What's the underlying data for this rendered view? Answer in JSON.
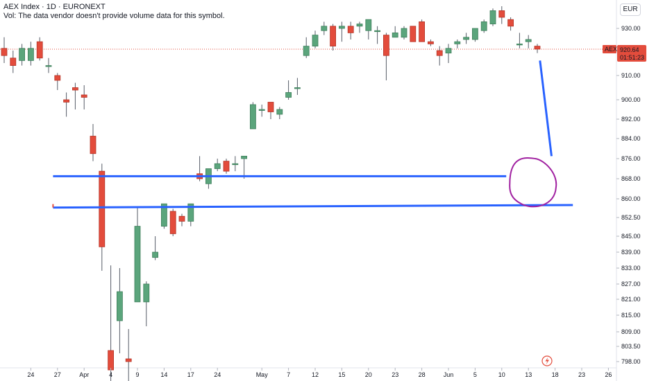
{
  "header": {
    "title": "AEX Index · 1D · EURONEXT",
    "vol_note": "Vol: The data vendor doesn't provide volume data for this symbol."
  },
  "currency_button": "EUR",
  "price_tag": {
    "symbol": "AEX",
    "price": "920.64",
    "countdown": "01:51:23"
  },
  "colors": {
    "up": "#5ba57c",
    "down": "#e34c3c",
    "blue_line": "#2962ff",
    "circle": "#a020a0",
    "price_line": "#e34c3c"
  },
  "chart_data": {
    "type": "candlestick",
    "y_axis": {
      "ticks": [
        798.0,
        803.5,
        809.0,
        815.0,
        821.0,
        827.0,
        833.0,
        839.0,
        845.0,
        852.5,
        860.0,
        868.0,
        876.0,
        884.0,
        892.0,
        900.0,
        910.0,
        920.0,
        930.0
      ],
      "labels": [
        "798.00",
        "803.50",
        "809.00",
        "815.00",
        "821.00",
        "827.00",
        "833.00",
        "839.00",
        "845.00",
        "852.50",
        "860.00",
        "868.00",
        "876.00",
        "884.00",
        "892.00",
        "900.00",
        "910.00",
        "920.00",
        "930.00"
      ]
    },
    "x_axis": {
      "labels": [
        {
          "label": "24",
          "i": 3
        },
        {
          "label": "27",
          "i": 6
        },
        {
          "label": "Apr",
          "i": 9
        },
        {
          "label": "4",
          "i": 12
        },
        {
          "label": "9",
          "i": 15
        },
        {
          "label": "14",
          "i": 18
        },
        {
          "label": "17",
          "i": 21
        },
        {
          "label": "24",
          "i": 24
        },
        {
          "label": "May",
          "i": 29
        },
        {
          "label": "7",
          "i": 32
        },
        {
          "label": "12",
          "i": 35
        },
        {
          "label": "15",
          "i": 38
        },
        {
          "label": "20",
          "i": 41
        },
        {
          "label": "23",
          "i": 44
        },
        {
          "label": "28",
          "i": 47
        },
        {
          "label": "Jun",
          "i": 50
        },
        {
          "label": "5",
          "i": 53
        },
        {
          "label": "10",
          "i": 56
        },
        {
          "label": "13",
          "i": 59
        },
        {
          "label": "18",
          "i": 62
        },
        {
          "label": "23",
          "i": 65
        },
        {
          "label": "26",
          "i": 68
        }
      ]
    },
    "candles": [
      {
        "i": 0,
        "o": 921,
        "h": 926,
        "l": 915,
        "c": 918
      },
      {
        "i": 1,
        "o": 917,
        "h": 920,
        "l": 911,
        "c": 914
      },
      {
        "i": 2,
        "o": 916,
        "h": 923,
        "l": 914,
        "c": 921
      },
      {
        "i": 3,
        "o": 916,
        "h": 924,
        "l": 914,
        "c": 921
      },
      {
        "i": 4,
        "o": 924,
        "h": 926,
        "l": 916,
        "c": 917
      },
      {
        "i": 5,
        "o": 914,
        "h": 917,
        "l": 911,
        "c": 914
      },
      {
        "i": 6,
        "o": 910,
        "h": 911,
        "l": 904,
        "c": 908
      },
      {
        "i": 7,
        "o": 900,
        "h": 903,
        "l": 893,
        "c": 899
      },
      {
        "i": 8,
        "o": 905,
        "h": 907,
        "l": 896,
        "c": 904
      },
      {
        "i": 9,
        "o": 902,
        "h": 906,
        "l": 896,
        "c": 901
      },
      {
        "i": 10,
        "o": 885,
        "h": 890,
        "l": 875,
        "c": 878
      },
      {
        "i": 11,
        "o": 871,
        "h": 874,
        "l": 832,
        "c": 841
      },
      {
        "i": 12,
        "o": 802,
        "h": 834,
        "l": 790,
        "c": 795
      },
      {
        "i": 13,
        "o": 813,
        "h": 833,
        "l": 801,
        "c": 824
      },
      {
        "i": 14,
        "o": 799,
        "h": 810,
        "l": 788,
        "c": 798
      },
      {
        "i": 15,
        "o": 820,
        "h": 857,
        "l": 820,
        "c": 849
      },
      {
        "i": 16,
        "o": 820,
        "h": 828,
        "l": 811,
        "c": 827
      },
      {
        "i": 17,
        "o": 837,
        "h": 845,
        "l": 836,
        "c": 839
      },
      {
        "i": 18,
        "o": 849,
        "h": 858,
        "l": 848,
        "c": 858
      },
      {
        "i": 19,
        "o": 855,
        "h": 856,
        "l": 845,
        "c": 846
      },
      {
        "i": 20,
        "o": 853,
        "h": 854,
        "l": 849,
        "c": 851
      },
      {
        "i": 21,
        "o": 851,
        "h": 858,
        "l": 849,
        "c": 858
      },
      {
        "i": 22,
        "o": 870,
        "h": 877,
        "l": 867,
        "c": 868
      },
      {
        "i": 23,
        "o": 866,
        "h": 871,
        "l": 864,
        "c": 872
      },
      {
        "i": 24,
        "o": 872,
        "h": 876,
        "l": 871,
        "c": 874
      },
      {
        "i": 25,
        "o": 875,
        "h": 876,
        "l": 870,
        "c": 871
      },
      {
        "i": 26,
        "o": 874,
        "h": 877,
        "l": 871,
        "c": 874
      },
      {
        "i": 27,
        "o": 876,
        "h": 877,
        "l": 868,
        "c": 877
      },
      {
        "i": 28,
        "o": 888,
        "h": 899,
        "l": 888,
        "c": 898
      },
      {
        "i": 29,
        "o": 896,
        "h": 898,
        "l": 893,
        "c": 896
      },
      {
        "i": 30,
        "o": 899,
        "h": 899,
        "l": 892,
        "c": 895
      },
      {
        "i": 31,
        "o": 894,
        "h": 897,
        "l": 892,
        "c": 896
      },
      {
        "i": 32,
        "o": 901,
        "h": 908,
        "l": 900,
        "c": 903
      },
      {
        "i": 33,
        "o": 905,
        "h": 909,
        "l": 902,
        "c": 905
      },
      {
        "i": 34,
        "o": 918,
        "h": 926,
        "l": 917,
        "c": 922
      },
      {
        "i": 35,
        "o": 922,
        "h": 929,
        "l": 921,
        "c": 927
      },
      {
        "i": 36,
        "o": 929,
        "h": 933,
        "l": 927,
        "c": 931
      },
      {
        "i": 37,
        "o": 931,
        "h": 932,
        "l": 920,
        "c": 922
      },
      {
        "i": 38,
        "o": 930,
        "h": 933,
        "l": 924,
        "c": 931
      },
      {
        "i": 39,
        "o": 931,
        "h": 933,
        "l": 925,
        "c": 928
      },
      {
        "i": 40,
        "o": 931,
        "h": 933,
        "l": 928,
        "c": 932
      },
      {
        "i": 41,
        "o": 929,
        "h": 934,
        "l": 925,
        "c": 934
      },
      {
        "i": 42,
        "o": 929,
        "h": 931,
        "l": 923,
        "c": 929
      },
      {
        "i": 43,
        "o": 927,
        "h": 928,
        "l": 908,
        "c": 918
      },
      {
        "i": 44,
        "o": 926,
        "h": 931,
        "l": 926,
        "c": 928
      },
      {
        "i": 45,
        "o": 926,
        "h": 931,
        "l": 925,
        "c": 930
      },
      {
        "i": 46,
        "o": 931,
        "h": 931,
        "l": 924,
        "c": 924
      },
      {
        "i": 47,
        "o": 933,
        "h": 934,
        "l": 924,
        "c": 924
      },
      {
        "i": 48,
        "o": 924,
        "h": 925,
        "l": 922,
        "c": 923
      },
      {
        "i": 49,
        "o": 920,
        "h": 922,
        "l": 914,
        "c": 918
      },
      {
        "i": 50,
        "o": 919,
        "h": 923,
        "l": 915,
        "c": 921
      },
      {
        "i": 51,
        "o": 923,
        "h": 925,
        "l": 921,
        "c": 924
      },
      {
        "i": 52,
        "o": 925,
        "h": 928,
        "l": 923,
        "c": 926
      },
      {
        "i": 53,
        "o": 925,
        "h": 930,
        "l": 924,
        "c": 930
      },
      {
        "i": 54,
        "o": 929,
        "h": 934,
        "l": 928,
        "c": 933
      },
      {
        "i": 55,
        "o": 932,
        "h": 939,
        "l": 931,
        "c": 938
      },
      {
        "i": 56,
        "o": 938,
        "h": 940,
        "l": 932,
        "c": 935
      },
      {
        "i": 57,
        "o": 934,
        "h": 935,
        "l": 929,
        "c": 931
      },
      {
        "i": 58,
        "o": 923,
        "h": 928,
        "l": 921,
        "c": 923
      },
      {
        "i": 59,
        "o": 924,
        "h": 927,
        "l": 921,
        "c": 925
      },
      {
        "i": 60,
        "o": 922,
        "h": 923,
        "l": 919,
        "c": 920.64
      }
    ],
    "last_price": 920.64,
    "drawings": [
      {
        "kind": "hline",
        "from": {
          "i": 5.5,
          "y": 869
        },
        "to": {
          "i": 56.5,
          "y": 869
        }
      },
      {
        "kind": "trendline",
        "from": {
          "i": 5.5,
          "y": 856.5
        },
        "to": {
          "i": 64,
          "y": 857.5
        }
      },
      {
        "kind": "arrow-line",
        "from": {
          "i": 60.3,
          "y": 916
        },
        "to": {
          "i": 61.6,
          "y": 877
        }
      },
      {
        "kind": "ellipse",
        "center": {
          "i": 59.5,
          "y": 866
        },
        "r_bars": 2.6,
        "r_price": 10
      }
    ]
  }
}
